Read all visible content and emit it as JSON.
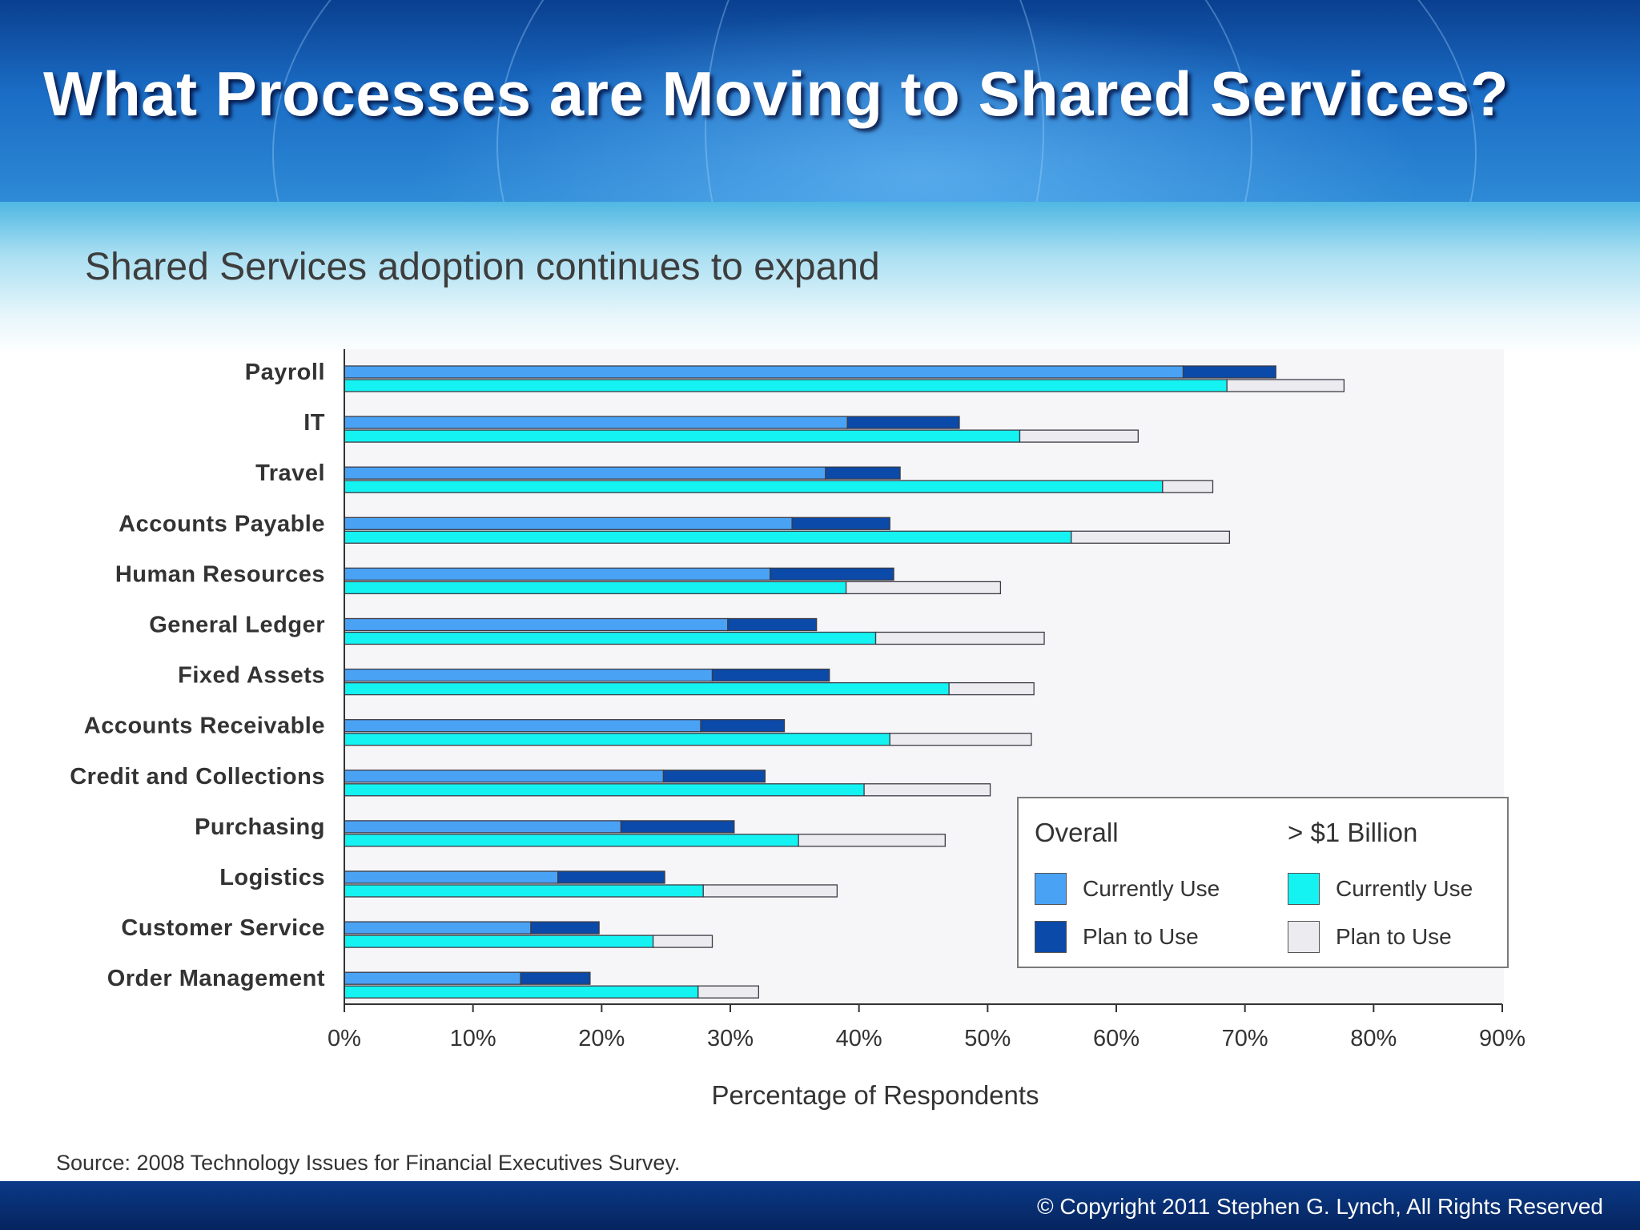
{
  "slide": {
    "title": "What Processes are Moving to Shared Services?",
    "subtitle": "Shared Services adoption continues to expand",
    "source": "Source: 2008 Technology Issues for Financial Executives Survey.",
    "copyright": "© Copyright 2011 Stephen G. Lynch, All Rights Reserved"
  },
  "legend": {
    "overall_heading": "Overall",
    "billion_heading": "> $1 Billion",
    "overall_current": "Currently Use",
    "overall_plan": "Plan to Use",
    "billion_current": "Currently Use",
    "billion_plan": "Plan to Use"
  },
  "colors": {
    "overall_current": "#4aa2f5",
    "overall_plan": "#0b4aa8",
    "billion_current": "#14f2f2",
    "billion_plan": "#ececf0"
  },
  "chart_data": {
    "type": "bar",
    "orientation": "horizontal",
    "stacked": true,
    "xlabel": "Percentage of Respondents",
    "ylabel": "",
    "xlim": [
      0,
      90
    ],
    "xticks": [
      "0%",
      "10%",
      "20%",
      "30%",
      "40%",
      "50%",
      "60%",
      "70%",
      "80%",
      "90%"
    ],
    "categories": [
      "Payroll",
      "IT",
      "Travel",
      "Accounts Payable",
      "Human Resources",
      "General Ledger",
      "Fixed Assets",
      "Accounts Receivable",
      "Credit and Collections",
      "Purchasing",
      "Logistics",
      "Customer Service",
      "Order Management"
    ],
    "groups": [
      {
        "name": "Overall",
        "series": [
          {
            "name": "Currently Use",
            "values": [
              65.2,
              39.1,
              37.4,
              34.8,
              33.1,
              29.8,
              28.6,
              27.7,
              24.8,
              21.5,
              16.6,
              14.5,
              13.7
            ]
          },
          {
            "name": "Plan to Use",
            "values": [
              7.2,
              8.7,
              5.8,
              7.6,
              9.6,
              6.9,
              9.1,
              6.5,
              7.9,
              8.8,
              8.3,
              5.3,
              5.4
            ]
          }
        ]
      },
      {
        "name": "> $1 Billion",
        "series": [
          {
            "name": "Currently Use",
            "values": [
              68.6,
              52.5,
              63.6,
              56.5,
              39.0,
              41.3,
              47.0,
              42.4,
              40.4,
              35.3,
              27.9,
              24.0,
              27.5
            ]
          },
          {
            "name": "Plan to Use",
            "values": [
              9.1,
              9.2,
              3.9,
              12.3,
              12.0,
              13.1,
              6.6,
              11.0,
              9.8,
              11.4,
              10.4,
              4.6,
              4.7
            ]
          }
        ]
      }
    ],
    "legend_position": "bottom-right"
  }
}
